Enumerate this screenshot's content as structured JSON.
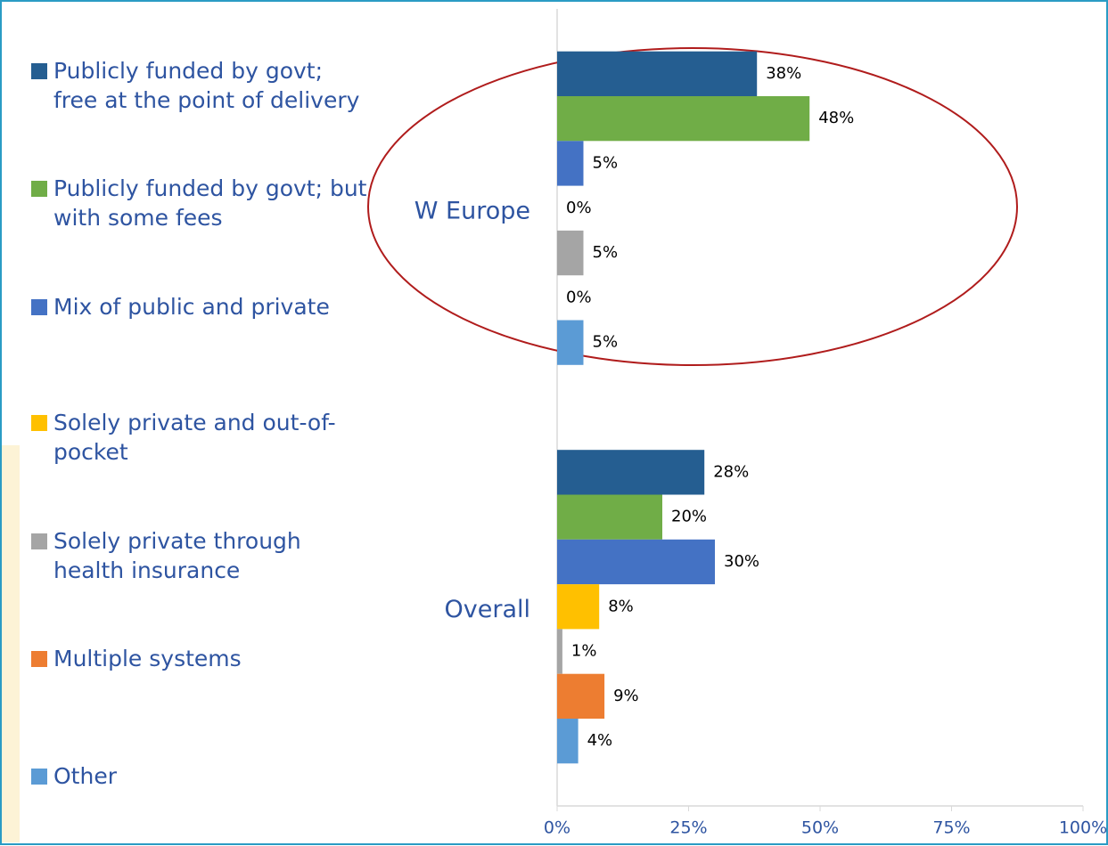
{
  "chart_data": {
    "type": "hbar",
    "categories": [
      "W Europe",
      "Overall"
    ],
    "series": [
      {
        "name": "Publicly funded by govt; free at the point of delivery",
        "color": "#255e91",
        "values": [
          38,
          28
        ],
        "value_labels": [
          "38%",
          "28%"
        ]
      },
      {
        "name": "Publicly funded by govt; but with some fees",
        "color": "#70ad47",
        "values": [
          48,
          20
        ],
        "value_labels": [
          "48%",
          "20%"
        ]
      },
      {
        "name": "Mix of public and private",
        "color": "#4472c4",
        "values": [
          5,
          30
        ],
        "value_labels": [
          "5%",
          "30%"
        ]
      },
      {
        "name": "Solely private and out-of-pocket",
        "color": "#ffc000",
        "values": [
          0,
          8
        ],
        "value_labels": [
          "0%",
          "8%"
        ]
      },
      {
        "name": "Solely private through health insurance",
        "color": "#a5a5a5",
        "values": [
          5,
          1
        ],
        "value_labels": [
          "5%",
          "1%"
        ]
      },
      {
        "name": "Multiple systems",
        "color": "#ed7d31",
        "values": [
          0,
          9
        ],
        "value_labels": [
          "0%",
          "9%"
        ]
      },
      {
        "name": "Other",
        "color": "#5b9bd5",
        "values": [
          5,
          4
        ],
        "value_labels": [
          "5%",
          "4%"
        ]
      }
    ],
    "xlim": [
      0,
      100
    ],
    "xticks": [
      {
        "value": 0,
        "label": "0%"
      },
      {
        "value": 25,
        "label": "25%"
      },
      {
        "value": 50,
        "label": "50%"
      },
      {
        "value": 75,
        "label": "75%"
      },
      {
        "value": 100,
        "label": "100%"
      }
    ],
    "legend": "left"
  }
}
